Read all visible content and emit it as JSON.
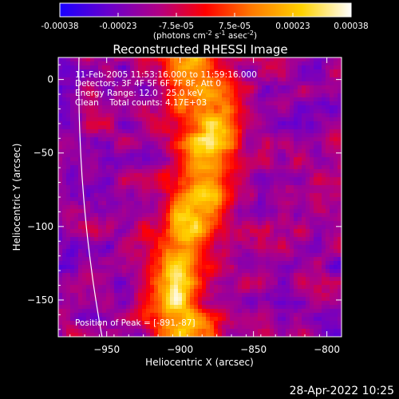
{
  "chart_data": {
    "type": "heatmap",
    "title": "Reconstructed RHESSI Image",
    "xlabel": "Heliocentric X (arcsec)",
    "ylabel": "Heliocentric Y (arcsec)",
    "xlim": [
      -983,
      -790
    ],
    "ylim": [
      -175,
      15
    ],
    "xticks": [
      -950,
      -900,
      -850,
      -800
    ],
    "yticks": [
      0,
      -50,
      -100,
      -150
    ],
    "xtick_labels": [
      "−950",
      "−900",
      "−850",
      "−800"
    ],
    "ytick_labels": [
      "0",
      "−50",
      "−100",
      "−150"
    ],
    "colorbar": {
      "range": [
        -0.00038,
        0.00038
      ],
      "tick_labels": [
        "-0.00038",
        "-0.00023",
        "-7.5e-05",
        "7.5e-05",
        "0.00023",
        "0.00038"
      ],
      "units_label": "(photons cm",
      "units_exp1": "-2",
      "units_mid": " s",
      "units_exp2": "-1",
      "units_mid2": " asec",
      "units_exp3": "-2",
      "units_end": ")",
      "colors": [
        "#1a00ff",
        "#6a00cc",
        "#b10084",
        "#ff0000",
        "#ff7a00",
        "#ffd200",
        "#ffffff"
      ]
    },
    "annotations": [
      "11-Feb-2005 11:53:16.000 to 11:59:16.000",
      "Detectors: 3F 4F 5F 6F 7F 8F, Att 0",
      "Energy Range: 12.0 - 25.0 keV",
      "Clean    Total counts: 4.17E+03"
    ],
    "peak_label": "Position of Peak = [-891,-87]",
    "peak": [
      -891,
      -87
    ],
    "limb_color": "#ffffff"
  },
  "timestamp": "28-Apr-2022 10:25"
}
